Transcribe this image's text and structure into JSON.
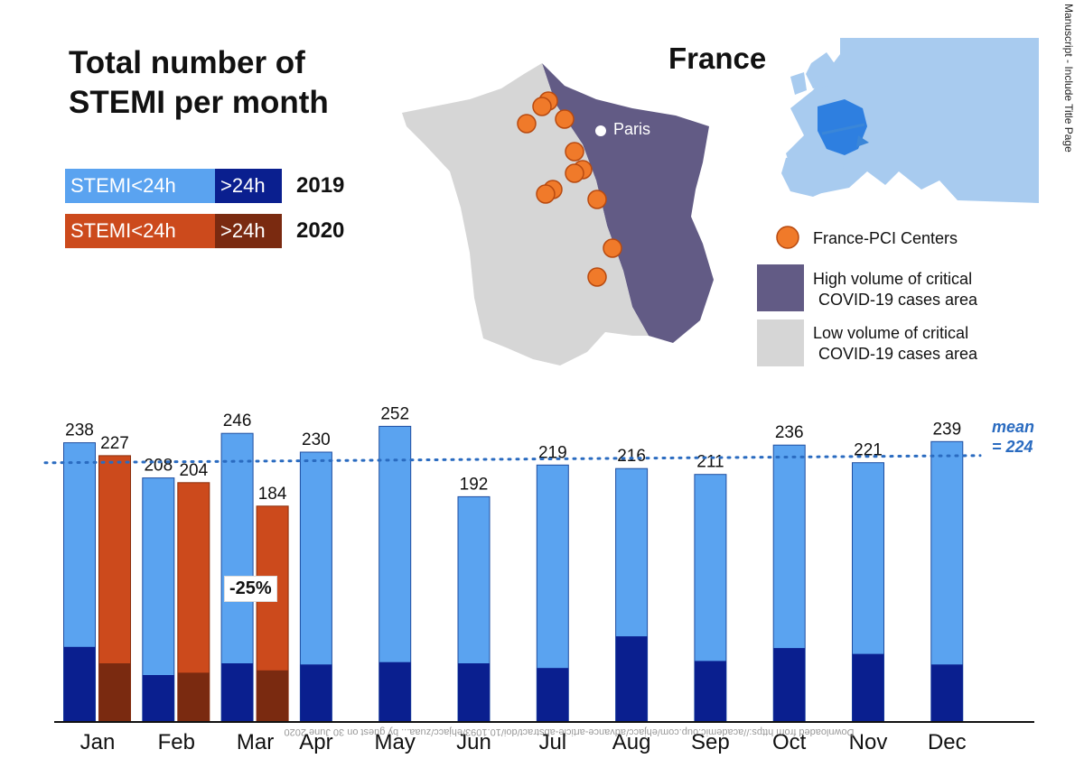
{
  "title_lines": [
    "Total number of",
    "STEMI per month"
  ],
  "map_title": "France",
  "legend": {
    "row2019": {
      "a": "STEMI<24h",
      "b": ">24h",
      "year": "2019"
    },
    "row2020": {
      "a": "STEMI<24h",
      "b": ">24h",
      "year": "2020"
    }
  },
  "map_legend": {
    "pci": "France-PCI Centers",
    "high": [
      "High volume of critical",
      "COVID-19 cases area"
    ],
    "low": [
      "Low volume of critical",
      "COVID-19 cases area"
    ],
    "paris": "Paris"
  },
  "mean_label": [
    "mean",
    "= 224"
  ],
  "pct_change": "-25%",
  "side_note": "Manuscript - Include Title Page",
  "watermark": "Downloaded from https://academic.oup.com/ehjacc/advance-article-abstract/doi/10.1093/ehjacc/zuaa... by guest on 30 June 2020",
  "colors": {
    "s2019_lt24": "#5aa3f0",
    "s2019_gt24": "#0a1f8f",
    "s2020_lt24": "#cc4a1c",
    "s2020_gt24": "#7a2a10",
    "high_area": "#625b85",
    "low_area": "#d6d6d6",
    "pci": "#f07a2a",
    "mean": "#2a6bc0"
  },
  "chart_data": {
    "type": "bar",
    "categories": [
      "Jan",
      "Feb",
      "Mar",
      "Apr",
      "May",
      "Jun",
      "Jul",
      "Aug",
      "Sep",
      "Oct",
      "Nov",
      "Dec"
    ],
    "series": [
      {
        "name": "2019",
        "total": [
          238,
          208,
          246,
          230,
          252,
          192,
          219,
          216,
          211,
          236,
          221,
          239
        ],
        "gt24h": [
          64,
          40,
          50,
          49,
          51,
          50,
          46,
          73,
          52,
          63,
          58,
          49
        ]
      },
      {
        "name": "2020",
        "total": [
          227,
          204,
          184,
          null,
          null,
          null,
          null,
          null,
          null,
          null,
          null,
          null
        ],
        "gt24h": [
          50,
          42,
          44,
          null,
          null,
          null,
          null,
          null,
          null,
          null,
          null,
          null
        ]
      }
    ],
    "mean": 224,
    "ylim": [
      0,
      260
    ],
    "annotations": [
      {
        "category": "Mar",
        "text": "-25%"
      }
    ]
  }
}
